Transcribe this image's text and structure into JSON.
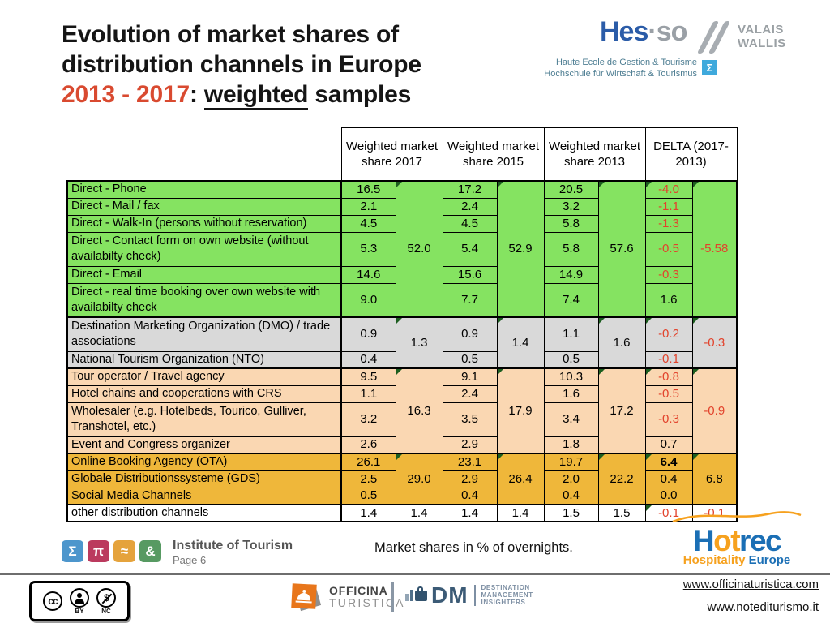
{
  "colors": {
    "title_accent": "#d94a30",
    "delta_negative": "#e2432c",
    "flag_triangle": "#1c5e1f",
    "hesso_blue": "#2b5ca8",
    "hotrec_blue": "#1b6fb5",
    "hotrec_orange": "#f6a11e"
  },
  "title": {
    "line1": "Evolution of market shares of",
    "line2": "distribution channels in Europe",
    "years": "2013 - 2017",
    "colon": ": ",
    "underlined": "weighted",
    "rest": " samples"
  },
  "hesso": {
    "name_hes": "Hes",
    "name_dot": "·",
    "name_so": "so",
    "region_line1": "VALAIS",
    "region_line2": "WALLIS",
    "subtitle_line1": "Haute Ecole de Gestion & Tourisme",
    "subtitle_line2": "Hochschule für Wirtschaft & Tourismus",
    "sigma": "Σ"
  },
  "table": {
    "headers": [
      "Weighted market share 2017",
      "Weighted market share 2015",
      "Weighted market share 2013",
      "DELTA (2017-2013)"
    ],
    "sections": [
      {
        "id": "direct",
        "color": "#85e361",
        "rows": [
          {
            "label": "Direct - Phone",
            "v": [
              "16.5",
              "17.2",
              "20.5",
              "-4.0"
            ]
          },
          {
            "label": "Direct - Mail / fax",
            "v": [
              "2.1",
              "2.4",
              "3.2",
              "-1.1"
            ]
          },
          {
            "label": "Direct - Walk-In (persons without reservation)",
            "v": [
              "4.5",
              "4.5",
              "5.8",
              "-1.3"
            ]
          },
          {
            "label": "Direct - Contact form on own website (without availabilty check)",
            "v": [
              "5.3",
              "5.4",
              "5.8",
              "-0.5"
            ],
            "tall": true
          },
          {
            "label": "Direct - Email",
            "v": [
              "14.6",
              "15.6",
              "14.9",
              "-0.3"
            ]
          },
          {
            "label": "Direct - real time booking over own website with availabilty check",
            "v": [
              "9.0",
              "7.7",
              "7.4",
              "1.6"
            ],
            "tall": true
          }
        ],
        "groups": [
          "52.0",
          "52.9",
          "57.6",
          "-5.58"
        ]
      },
      {
        "id": "dmo-nto",
        "color": "#d9d9d9",
        "rows": [
          {
            "label": "Destination Marketing Organization (DMO) / trade associations",
            "v": [
              "0.9",
              "0.9",
              "1.1",
              "-0.2"
            ],
            "tall": true
          },
          {
            "label": "National Tourism Organization (NTO)",
            "v": [
              "0.4",
              "0.5",
              "0.5",
              "-0.1"
            ]
          }
        ],
        "groups": [
          "1.3",
          "1.4",
          "1.6",
          "-0.3"
        ]
      },
      {
        "id": "intermediaries",
        "color": "#fad7b2",
        "rows": [
          {
            "label": "Tour operator / Travel agency",
            "v": [
              "9.5",
              "9.1",
              "10.3",
              "-0.8"
            ]
          },
          {
            "label": "Hotel chains and cooperations with CRS",
            "v": [
              "1.1",
              "2.4",
              "1.6",
              "-0.5"
            ]
          },
          {
            "label": "Wholesaler (e.g. Hotelbeds, Tourico, Gulliver, Transhotel, etc.)",
            "v": [
              "3.2",
              "3.5",
              "3.4",
              "-0.3"
            ],
            "tall": true
          },
          {
            "label": "Event and Congress organizer",
            "v": [
              "2.6",
              "2.9",
              "1.8",
              "0.7"
            ]
          }
        ],
        "groups": [
          "16.3",
          "17.9",
          "17.2",
          "-0.9"
        ]
      },
      {
        "id": "online",
        "color": "#efb73a",
        "rows": [
          {
            "label": "Online Booking Agency (OTA)",
            "v": [
              "26.1",
              "23.1",
              "19.7",
              "6.4"
            ],
            "boldDelta": true
          },
          {
            "label": "Globale Distributionssysteme (GDS)",
            "v": [
              "2.5",
              "2.9",
              "2.0",
              "0.4"
            ]
          },
          {
            "label": "Social Media Channels",
            "v": [
              "0.5",
              "0.4",
              "0.4",
              "0.0"
            ]
          }
        ],
        "groups": [
          "29.0",
          "26.4",
          "22.2",
          "6.8"
        ]
      },
      {
        "id": "other",
        "color": "#ffffff",
        "rows": [
          {
            "label": "other distribution channels",
            "v": [
              "1.4",
              "1.4",
              "1.4",
              "1.4",
              "1.5",
              "1.5",
              "-0.1",
              "-0.1"
            ],
            "full": true
          }
        ],
        "groups": null
      }
    ]
  },
  "footer": {
    "note": "Market shares in % of overnights.",
    "institute": {
      "icons": [
        {
          "glyph": "Σ",
          "color": "#4d96cc",
          "name": "sigma-icon"
        },
        {
          "glyph": "π",
          "color": "#bb3a5e",
          "name": "pi-icon"
        },
        {
          "glyph": "≈",
          "color": "#e5a33c",
          "name": "approx-icon"
        },
        {
          "glyph": "&",
          "color": "#579a62",
          "name": "ampersand-icon"
        }
      ],
      "name": "Institute of Tourism",
      "page": "Page 6"
    },
    "hotrec": {
      "h": "H",
      "ot": "ot",
      "rec": "rec",
      "sub_orange": "Hospitality",
      "sub_blue": " Europe"
    }
  },
  "bottombar": {
    "cc": {
      "cc": "cc",
      "by": "BY",
      "nc": "NC"
    },
    "officina": {
      "line1": "OFFICINA",
      "line2": "TURISTICA"
    },
    "dmi": {
      "dm": "DM",
      "lines": [
        "DESTINATION",
        "MANAGEMENT",
        "INSIGHTERS"
      ]
    },
    "links": [
      "www.officinaturistica.com",
      "www.notediturismo.it"
    ]
  }
}
